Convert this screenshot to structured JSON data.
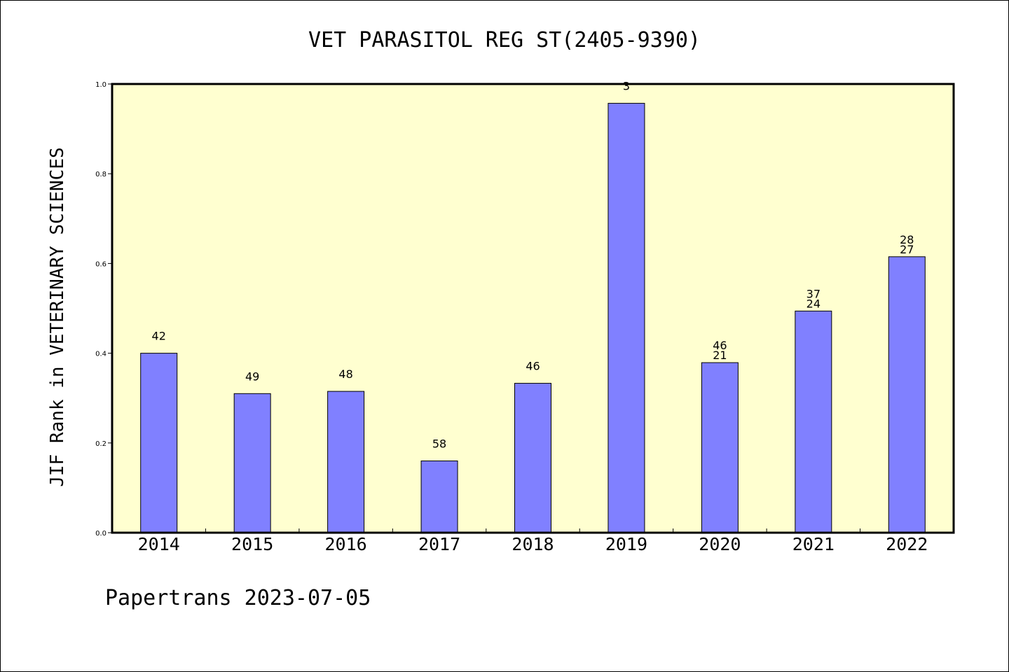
{
  "chart_data": {
    "type": "bar",
    "title": "VET PARASITOL REG ST(2405-9390)",
    "xlabel": "",
    "ylabel": "JIF Rank in VETERINARY SCIENCES",
    "ylim": [
      0,
      1.0
    ],
    "yticks": [
      "0.0",
      "0.2",
      "0.4",
      "0.6",
      "0.8",
      "1.0"
    ],
    "categories": [
      "2014",
      "2015",
      "2016",
      "2017",
      "2018",
      "2019",
      "2020",
      "2021",
      "2022"
    ],
    "values": [
      0.4,
      0.31,
      0.315,
      0.16,
      0.333,
      0.957,
      0.379,
      0.494,
      0.615
    ],
    "bar_labels": [
      [
        "42"
      ],
      [
        "49"
      ],
      [
        "48"
      ],
      [
        "58"
      ],
      [
        "46"
      ],
      [
        "3"
      ],
      [
        "46",
        "21"
      ],
      [
        "37",
        "24"
      ],
      [
        "28",
        "27"
      ]
    ],
    "bar_color": "#8080ff",
    "plot_background": "#ffffd0",
    "grid": false
  },
  "footer": "Papertrans 2023-07-05"
}
